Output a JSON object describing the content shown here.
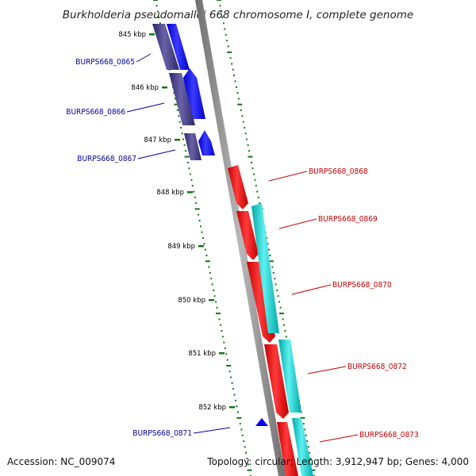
{
  "title": "Burkholderia pseudomallei 668 chromosome I, complete genome",
  "footer": {
    "accession": "Accession: NC_009074",
    "summary": "Topology: circular; Length: 3,912,947 bp; Genes: 4,000"
  },
  "ticks": [
    "845 kbp",
    "846 kbp",
    "847 kbp",
    "848 kbp",
    "849 kbp",
    "850 kbp",
    "851 kbp",
    "852 kbp"
  ],
  "genes": [
    {
      "label": "BURPS668_0865",
      "strand": "forward"
    },
    {
      "label": "BURPS668_0866",
      "strand": "forward"
    },
    {
      "label": "BURPS668_0867",
      "strand": "forward"
    },
    {
      "label": "BURPS668_0868",
      "strand": "reverse"
    },
    {
      "label": "BURPS668_0869",
      "strand": "reverse"
    },
    {
      "label": "BURPS668_0870",
      "strand": "reverse"
    },
    {
      "label": "BURPS668_0872",
      "strand": "reverse"
    },
    {
      "label": "BURPS668_0873",
      "strand": "reverse"
    },
    {
      "label": "BURPS668_0871",
      "strand": "forward"
    }
  ],
  "colors": {
    "forward_label": "#0000aa",
    "reverse_label": "#cc0000",
    "cds_forward": "#0000ee",
    "gene_forward": "#3d3580",
    "cds_reverse": "#ee0000",
    "gene_reverse": "#00cccc",
    "backbone": "#888888",
    "ticks": "#117711"
  }
}
